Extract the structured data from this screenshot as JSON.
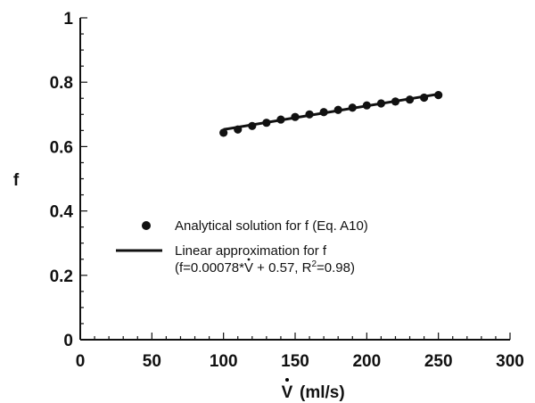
{
  "chart_data": {
    "type": "scatter",
    "xlabel_symbol": "V",
    "xlabel_unit": "(ml/s)",
    "ylabel": "f",
    "xlim": [
      0,
      300
    ],
    "ylim": [
      0,
      1
    ],
    "xticks": [
      "0",
      "50",
      "100",
      "150",
      "200",
      "250",
      "300"
    ],
    "yticks": [
      "0",
      "0.2",
      "0.4",
      "0.6",
      "0.8",
      "1"
    ],
    "grid": false,
    "legend_position": "center-left",
    "series": [
      {
        "name": "Analytical solution for f (Eq. A10)",
        "style": "markers",
        "color": "#111111",
        "x": [
          100,
          110,
          120,
          130,
          140,
          150,
          160,
          170,
          180,
          190,
          200,
          210,
          220,
          230,
          240,
          250
        ],
        "y": [
          0.643,
          0.653,
          0.664,
          0.674,
          0.684,
          0.692,
          0.7,
          0.707,
          0.714,
          0.721,
          0.728,
          0.734,
          0.74,
          0.746,
          0.752,
          0.76
        ]
      },
      {
        "name": "Linear approximation for  f",
        "style": "line",
        "color": "#111111",
        "x": [
          100,
          250
        ],
        "y": [
          0.653,
          0.763
        ]
      }
    ],
    "legend": {
      "marker_label": "Analytical solution for f (Eq. A10)",
      "line_label": "Linear approximation for  f",
      "equation_prefix": "(f=0.00078*",
      "equation_var": "V",
      "equation_mid": " + 0.57, R",
      "equation_sup": "2",
      "equation_end": "=0.98)"
    }
  }
}
